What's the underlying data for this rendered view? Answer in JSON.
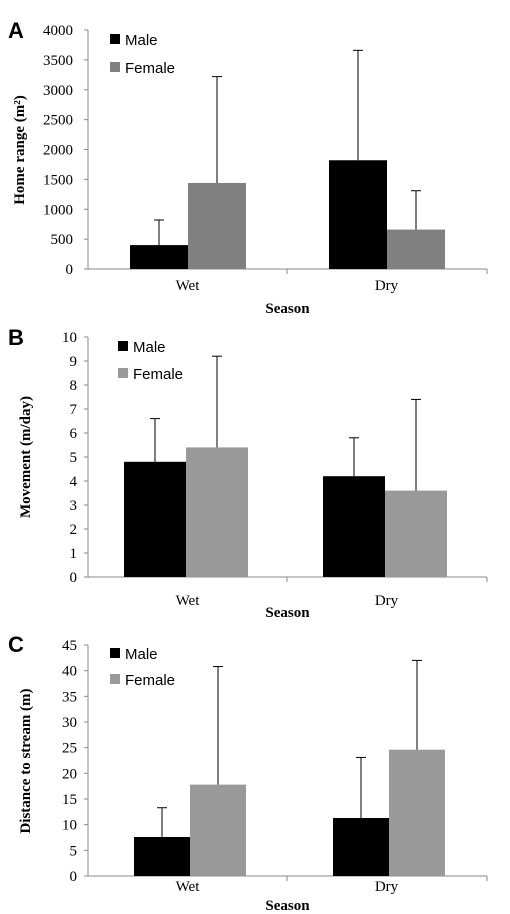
{
  "chart_data": [
    {
      "panel": "A",
      "type": "bar",
      "categories": [
        "Wet",
        "Dry"
      ],
      "series": [
        {
          "name": "Male",
          "color": "#000000",
          "values": [
            400,
            1820
          ],
          "error": [
            420,
            1840
          ]
        },
        {
          "name": "Female",
          "color": "#808080",
          "values": [
            1440,
            660
          ],
          "error": [
            1780,
            650
          ]
        }
      ],
      "xlabel": "Season",
      "ylabel": "Home range (m²)",
      "ylim": [
        0,
        4000
      ],
      "yticks": [
        "0",
        "500",
        "1000",
        "1500",
        "2000",
        "2500",
        "3000",
        "3500",
        "4000"
      ],
      "legend_position": "top-left"
    },
    {
      "panel": "B",
      "type": "bar",
      "categories": [
        "Wet",
        "Dry"
      ],
      "series": [
        {
          "name": "Male",
          "color": "#000000",
          "values": [
            4.8,
            4.2
          ],
          "error": [
            1.8,
            1.6
          ]
        },
        {
          "name": "Female",
          "color": "#999999",
          "values": [
            5.4,
            3.6
          ],
          "error": [
            3.8,
            3.8
          ]
        }
      ],
      "xlabel": "Season",
      "ylabel": "Movement (m/day)",
      "ylim": [
        0,
        10
      ],
      "yticks": [
        "0",
        "1",
        "2",
        "3",
        "4",
        "5",
        "6",
        "7",
        "8",
        "9",
        "10"
      ],
      "legend_position": "top-left"
    },
    {
      "panel": "C",
      "type": "bar",
      "categories": [
        "Wet",
        "Dry"
      ],
      "series": [
        {
          "name": "Male",
          "color": "#000000",
          "values": [
            7.6,
            11.3
          ],
          "error": [
            5.7,
            11.8
          ]
        },
        {
          "name": "Female",
          "color": "#999999",
          "values": [
            17.8,
            24.6
          ],
          "error": [
            23.0,
            17.4
          ]
        }
      ],
      "xlabel": "Season",
      "ylabel": "Distance to stream (m)",
      "ylim": [
        0,
        45
      ],
      "yticks": [
        "0",
        "5",
        "10",
        "15",
        "20",
        "25",
        "30",
        "35",
        "40",
        "45"
      ],
      "legend_position": "top-left"
    }
  ]
}
